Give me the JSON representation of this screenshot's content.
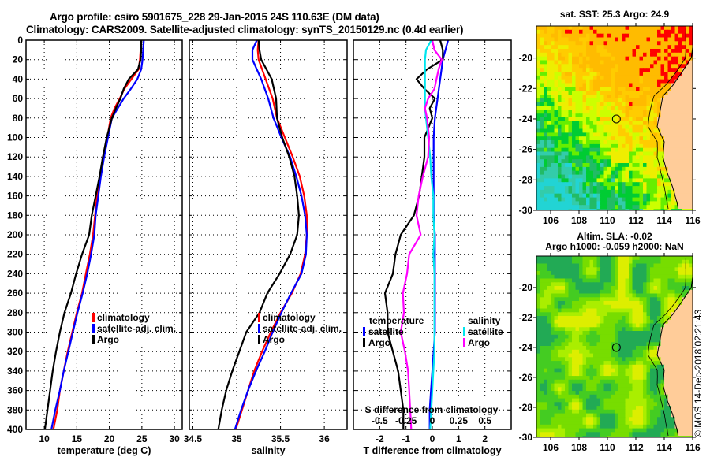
{
  "header": {
    "line1": "Argo profile: csiro 5901675_228 29-Jan-2015 24S 110.63E (DM data)",
    "line2": "Climatology: CARS2009. Satellite-adjusted climatology: synTS_20150129.nc (0.4d earlier)"
  },
  "colors": {
    "climatology": "#ff0000",
    "satellite": "#0000ff",
    "argo": "#000000",
    "salinity_satellite": "#00e5ee",
    "salinity_argo": "#ff00ff",
    "land": "#ffcc99"
  },
  "chart_data": [
    {
      "type": "line",
      "name": "temperature-profile",
      "xlabel": "temperature (deg C)",
      "ylabel": "",
      "xlim": [
        7.2,
        31.2
      ],
      "ylim": [
        400,
        0
      ],
      "xticks": [
        10,
        15,
        20,
        25,
        30
      ],
      "yticks": [
        0,
        20,
        40,
        60,
        80,
        100,
        120,
        140,
        160,
        180,
        200,
        220,
        240,
        260,
        280,
        300,
        320,
        340,
        360,
        380,
        400
      ],
      "grid": true,
      "legend": {
        "position": "middle-right",
        "entries": [
          "climatology",
          "satellite-adj. clim.",
          "Argo"
        ]
      },
      "depth": [
        0,
        10,
        20,
        30,
        40,
        50,
        60,
        70,
        80,
        100,
        120,
        140,
        160,
        180,
        200,
        220,
        240,
        260,
        280,
        300,
        320,
        340,
        360,
        380,
        400
      ],
      "series": [
        {
          "name": "climatology",
          "color": "#ff0000",
          "values": [
            24.9,
            24.8,
            24.7,
            24.5,
            23.4,
            22.3,
            21.6,
            20.8,
            20.2,
            19.7,
            19.0,
            18.6,
            18.1,
            17.8,
            17.5,
            17.0,
            16.4,
            15.8,
            15.0,
            14.3,
            13.6,
            13.0,
            12.4,
            12.0,
            11.4
          ]
        },
        {
          "name": "satellite-adj. clim.",
          "color": "#0000ff",
          "values": [
            25.3,
            25.2,
            25.1,
            24.9,
            24.3,
            23.3,
            22.2,
            21.3,
            20.4,
            19.8,
            19.2,
            18.7,
            18.3,
            17.9,
            17.7,
            17.2,
            16.6,
            15.9,
            15.1,
            14.4,
            13.7,
            13.0,
            12.4,
            11.7,
            11.1
          ]
        },
        {
          "name": "Argo",
          "color": "#000000",
          "values": [
            24.9,
            24.9,
            24.8,
            24.4,
            23.0,
            22.2,
            21.7,
            21.0,
            20.4,
            19.6,
            19.0,
            18.5,
            17.9,
            17.3,
            16.9,
            15.8,
            14.9,
            14.1,
            13.1,
            12.4,
            11.8,
            11.3,
            10.9,
            10.5,
            10.1
          ]
        }
      ]
    },
    {
      "type": "line",
      "name": "salinity-profile",
      "xlabel": "salinity",
      "ylabel": "",
      "xlim": [
        34.46,
        36.26
      ],
      "ylim": [
        400,
        0
      ],
      "xticks": [
        34.5,
        35,
        35.5,
        36
      ],
      "grid": true,
      "legend": {
        "position": "middle-right",
        "entries": [
          "climatology",
          "satellite-adj. clim.",
          "Argo"
        ]
      },
      "depth": [
        0,
        10,
        20,
        40,
        60,
        80,
        100,
        120,
        140,
        160,
        180,
        200,
        220,
        240,
        260,
        280,
        300,
        320,
        340,
        360,
        380,
        400
      ],
      "series": [
        {
          "name": "climatology",
          "color": "#ff0000",
          "values": [
            35.25,
            35.24,
            35.25,
            35.33,
            35.41,
            35.46,
            35.55,
            35.64,
            35.72,
            35.77,
            35.8,
            35.8,
            35.78,
            35.73,
            35.63,
            35.5,
            35.39,
            35.29,
            35.2,
            35.13,
            35.06,
            34.99
          ]
        },
        {
          "name": "satellite-adj. clim.",
          "color": "#0000ff",
          "values": [
            35.23,
            35.18,
            35.18,
            35.28,
            35.36,
            35.42,
            35.51,
            35.61,
            35.68,
            35.74,
            35.78,
            35.8,
            35.79,
            35.74,
            35.62,
            35.51,
            35.41,
            35.32,
            35.22,
            35.13,
            35.05,
            34.98
          ]
        },
        {
          "name": "Argo",
          "color": "#000000",
          "values": [
            35.25,
            35.26,
            35.28,
            35.4,
            35.45,
            35.46,
            35.52,
            35.6,
            35.66,
            35.69,
            35.71,
            35.69,
            35.61,
            35.49,
            35.35,
            35.26,
            35.11,
            35.03,
            34.95,
            34.88,
            34.83,
            34.79
          ]
        }
      ]
    },
    {
      "type": "line",
      "name": "difference-profile",
      "xlabel": "T difference from climatology",
      "x2label": "S difference from climatology",
      "xlim": [
        -3,
        3
      ],
      "x2lim": [
        -0.75,
        0.75
      ],
      "xticks": [
        -2,
        -1,
        0,
        1,
        2
      ],
      "x2ticks": [
        -0.5,
        -0.25,
        0,
        0.25,
        0.5
      ],
      "grid": true,
      "legend": {
        "position": "lower-middle",
        "groups": [
          {
            "title": "temperature",
            "entries": [
              "satellite",
              "Argo"
            ]
          },
          {
            "title": "salinity",
            "entries": [
              "satellite",
              "Argo"
            ]
          }
        ]
      },
      "depth": [
        0,
        10,
        20,
        30,
        40,
        50,
        60,
        70,
        80,
        100,
        120,
        140,
        160,
        180,
        200,
        220,
        240,
        260,
        280,
        300,
        320,
        340,
        360,
        380,
        400
      ],
      "series": [
        {
          "name": "temperature satellite",
          "axis": "T",
          "color": "#0000ff",
          "values": [
            0.6,
            0.5,
            0.4,
            0.35,
            0.3,
            0.25,
            0.2,
            0.15,
            0.1,
            0.05,
            0.05,
            0.05,
            0.05,
            0.05,
            0.1,
            0.1,
            0.1,
            0.1,
            0.1,
            0.1,
            0.05,
            0.0,
            -0.05,
            -0.1,
            -0.1
          ]
        },
        {
          "name": "temperature Argo",
          "axis": "T",
          "color": "#000000",
          "values": [
            0.3,
            0.4,
            0.4,
            -0.2,
            -0.6,
            -0.3,
            0.1,
            -0.1,
            0.0,
            -0.3,
            -0.3,
            -0.4,
            -0.5,
            -0.7,
            -1.2,
            -1.4,
            -1.5,
            -1.8,
            -1.7,
            -1.7,
            -1.5,
            -1.3,
            -1.2,
            -1.1,
            -1.1
          ]
        },
        {
          "name": "salinity satellite",
          "axis": "S",
          "color": "#00e5ee",
          "values": [
            -0.01,
            -0.06,
            -0.07,
            -0.07,
            -0.07,
            -0.07,
            -0.07,
            -0.07,
            -0.06,
            -0.04,
            -0.02,
            -0.01,
            0.01,
            0.01,
            0.02,
            0.01,
            0.02,
            0.02,
            0.02,
            0.02,
            0.02,
            0.01,
            0.0,
            -0.01,
            -0.02
          ]
        },
        {
          "name": "salinity Argo",
          "axis": "S",
          "color": "#ff00ff",
          "values": [
            0.0,
            0.02,
            0.09,
            0.06,
            0.04,
            0.02,
            -0.04,
            -0.07,
            -0.05,
            -0.03,
            -0.04,
            -0.09,
            -0.13,
            -0.15,
            -0.11,
            -0.22,
            -0.24,
            -0.28,
            -0.27,
            -0.3,
            -0.26,
            -0.23,
            -0.22,
            -0.21,
            -0.2
          ]
        }
      ]
    },
    {
      "type": "heatmap",
      "name": "sst-map",
      "title": "sat. SST: 25.3 Argo: 24.9",
      "xlim": [
        105,
        116
      ],
      "ylim": [
        -30,
        -17.9
      ],
      "xticks": [
        106,
        108,
        110,
        112,
        114,
        116
      ],
      "yticks": [
        -20,
        -22,
        -24,
        -26,
        -28,
        -30
      ],
      "argo_position": {
        "lon": 110.63,
        "lat": -24.0
      }
    },
    {
      "type": "heatmap",
      "name": "sla-map",
      "title": "Altim. SLA: -0.02",
      "subtitle": "Argo h1000: -0.059 h2000: NaN",
      "xlim": [
        105,
        116
      ],
      "ylim": [
        -30,
        -17.9
      ],
      "xticks": [
        106,
        108,
        110,
        112,
        114,
        116
      ],
      "yticks": [
        -20,
        -22,
        -24,
        -26,
        -28,
        -30
      ],
      "argo_position": {
        "lon": 110.63,
        "lat": -24.0
      }
    }
  ],
  "legend_labels": {
    "climatology": "climatology",
    "satellite_adj": "satellite-adj. clim.",
    "argo": "Argo",
    "temperature": "temperature",
    "salinity": "salinity",
    "satellite": "satellite"
  },
  "footer": {
    "stamp": "©IMOS 14-Dec-2018 02:21:43"
  }
}
